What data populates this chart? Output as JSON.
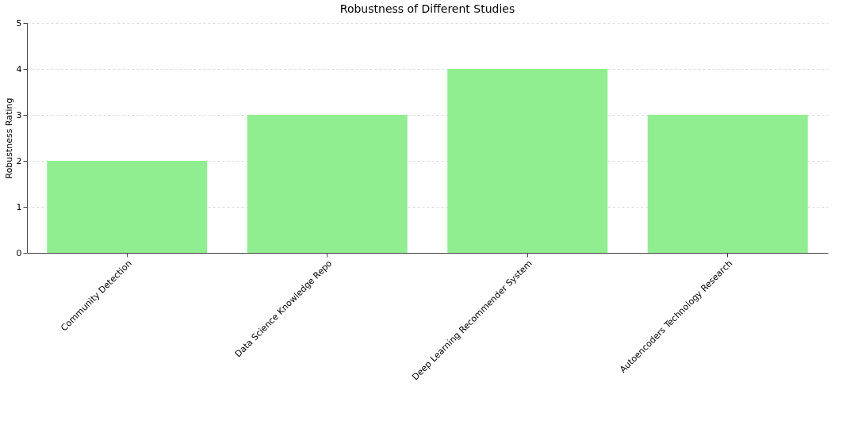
{
  "chart_data": {
    "type": "bar",
    "title": "Robustness of Different Studies",
    "ylabel": "Robustness Rating",
    "categories": [
      "Community Detection",
      "Data Science Knowledge Repo",
      "Deep Learning Recommender System",
      "Autoencoders Technology Research"
    ],
    "values": [
      2,
      3,
      4,
      3
    ],
    "color": "#90ee90",
    "ylim": [
      0,
      5
    ],
    "yticks": [
      0,
      1,
      2,
      3,
      4,
      5
    ],
    "grid": "y"
  }
}
